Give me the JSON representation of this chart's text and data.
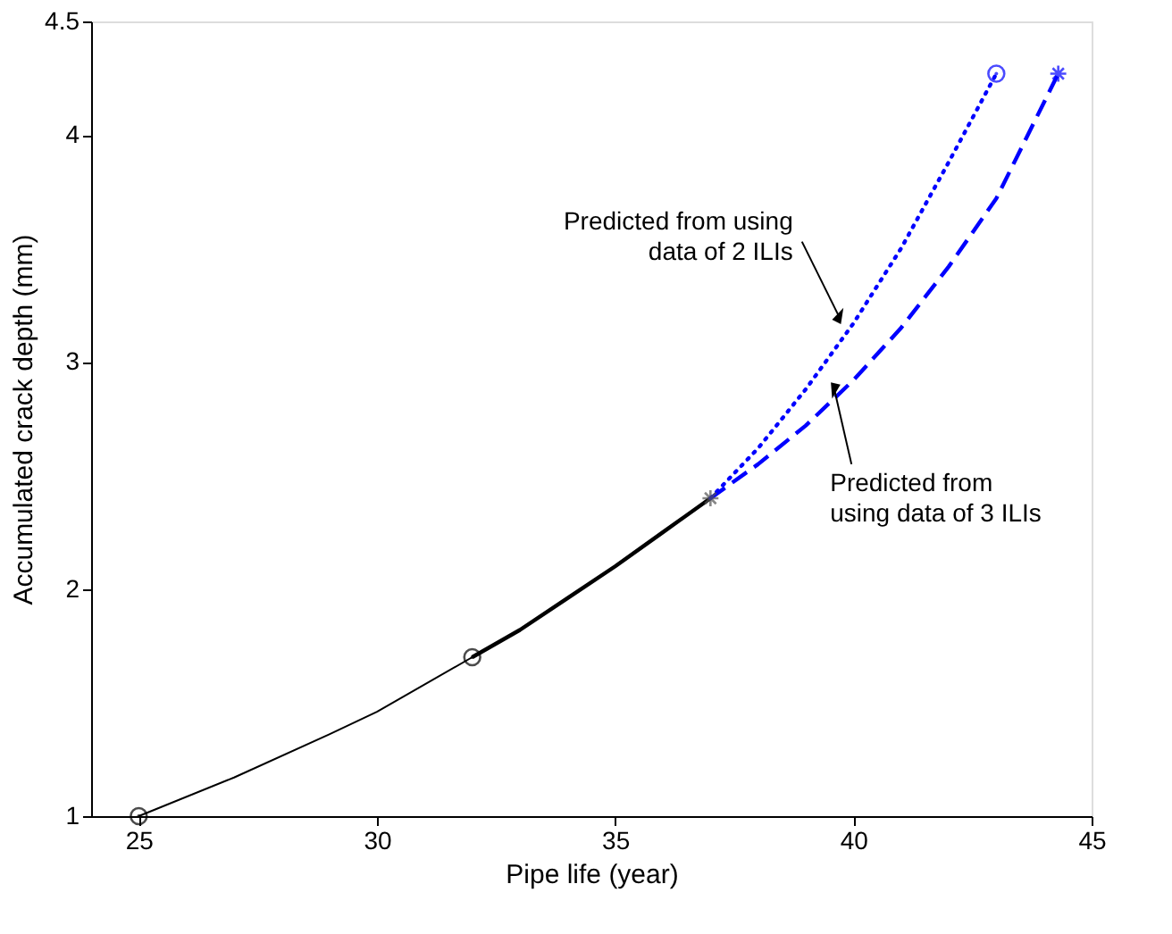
{
  "chart_data": {
    "type": "line",
    "xlabel": "Pipe life (year)",
    "ylabel": "Accumulated crack depth (mm)",
    "xlim": [
      24,
      45
    ],
    "xticks": [
      25,
      30,
      35,
      40,
      45
    ],
    "ylim": [
      1,
      4.5
    ],
    "yticks": [
      1,
      2,
      3,
      4,
      4.5
    ],
    "grid": false,
    "series": [
      {
        "line_style": "solid",
        "color": "#000000",
        "x": [
          25,
          27,
          29,
          30,
          32
        ],
        "values": [
          1.0,
          1.17,
          1.36,
          1.46,
          1.7
        ]
      },
      {
        "line_style": "solid",
        "color": "#000000",
        "x": [
          32,
          33,
          34,
          35,
          36,
          37
        ],
        "values": [
          1.7,
          1.82,
          1.96,
          2.1,
          2.25,
          2.4
        ]
      },
      {
        "line_style": "dotted",
        "color": "#0000ff",
        "x": [
          37,
          38,
          39,
          40,
          41,
          42,
          43
        ],
        "values": [
          2.4,
          2.62,
          2.88,
          3.17,
          3.5,
          3.88,
          4.27
        ]
      },
      {
        "line_style": "dashed",
        "color": "#0000ff",
        "x": [
          37,
          38,
          39,
          40,
          41,
          42,
          43,
          44.3
        ],
        "values": [
          2.4,
          2.55,
          2.72,
          2.92,
          3.15,
          3.42,
          3.72,
          4.27
        ]
      },
      {
        "type": "scatter",
        "marker": "circle",
        "color": "#000000",
        "x": [
          25,
          32
        ],
        "values": [
          1.0,
          1.7
        ]
      },
      {
        "type": "scatter",
        "marker": "cross",
        "color": "#555555",
        "x": [
          37
        ],
        "values": [
          2.4
        ]
      },
      {
        "type": "scatter",
        "marker": "circle",
        "color": "#0000ff",
        "x": [
          43
        ],
        "values": [
          4.27
        ]
      },
      {
        "type": "scatter",
        "marker": "cross",
        "color": "#0000ff",
        "x": [
          44.3
        ],
        "values": [
          4.27
        ]
      }
    ],
    "annotations": [
      {
        "text": "Predicted from using\ndata of 2 ILIs",
        "x": 39.7,
        "y": 3.2
      },
      {
        "text": "Predicted from\nusing data of 3 ILIs",
        "x": 39.6,
        "y": 2.88
      }
    ]
  }
}
